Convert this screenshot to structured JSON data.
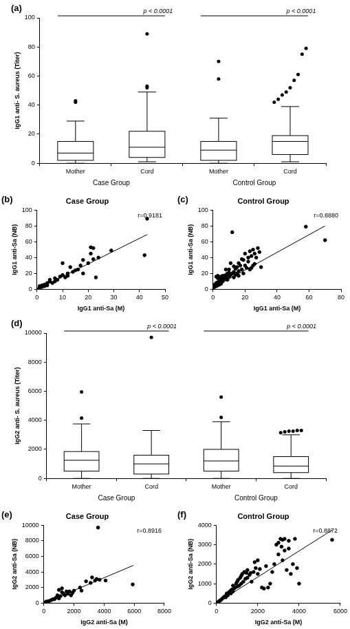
{
  "chart_data": [
    {
      "type": "box",
      "label": "(a)",
      "y_label": "IgG1 anti- S. aureus (Titer)",
      "categories": [
        "Mother",
        "Cord",
        "Mother",
        "Cord"
      ],
      "groups": [
        {
          "name": "Case Group",
          "annotation": "p < 0.0001"
        },
        {
          "name": "Control Group",
          "annotation": "p < 0.0001"
        }
      ],
      "boxes": [
        {
          "min": 0,
          "q1": 2,
          "median": 7,
          "q3": 15,
          "max": 29,
          "outliers": [
            42,
            43
          ]
        },
        {
          "min": 1,
          "q1": 4,
          "median": 11,
          "q3": 22,
          "max": 49,
          "outliers": [
            52,
            53,
            89
          ]
        },
        {
          "min": 0,
          "q1": 2,
          "median": 9,
          "q3": 15,
          "max": 31,
          "outliers": [
            58,
            70
          ]
        },
        {
          "min": 1,
          "q1": 6,
          "median": 15,
          "q3": 19,
          "max": 39,
          "outliers": [
            42,
            44,
            47,
            49,
            52,
            57,
            61,
            75,
            79
          ]
        }
      ],
      "color": "#000000",
      "ylim": [
        0,
        100
      ],
      "yticks": [
        0,
        20,
        40,
        60,
        80,
        100
      ],
      "grid": false
    },
    {
      "type": "scatter",
      "label": "(b)",
      "title": "Case Group",
      "x_label": "IgG1 anti-Sa (M)",
      "y_label": "IgG1 anti-Sa (NB)",
      "x": [
        0,
        1,
        1,
        2,
        2,
        3,
        3,
        4,
        4,
        5,
        5,
        6,
        7,
        7,
        8,
        9,
        10,
        10,
        11,
        12,
        12,
        13,
        14,
        15,
        16,
        17,
        18,
        18,
        20,
        21,
        21,
        22,
        22,
        23,
        24,
        29,
        42,
        43
      ],
      "y": [
        0,
        2,
        4,
        3,
        5,
        4,
        6,
        5,
        8,
        10,
        12,
        8,
        10,
        14,
        12,
        16,
        18,
        33,
        15,
        17,
        20,
        28,
        22,
        24,
        25,
        30,
        20,
        37,
        33,
        45,
        53,
        38,
        52,
        15,
        40,
        49,
        43,
        89
      ],
      "fit": {
        "x": [
          0,
          43
        ],
        "y": [
          0,
          69
        ]
      },
      "annotation": "r=0.9181",
      "color": "#000000",
      "marker": "circle",
      "xlim": [
        0,
        50
      ],
      "xticks": [
        0,
        10,
        20,
        30,
        40,
        50
      ],
      "ylim": [
        0,
        100
      ],
      "yticks": [
        0,
        20,
        40,
        60,
        80,
        100
      ],
      "grid": false
    },
    {
      "type": "scatter",
      "label": "(c)",
      "title": "Control Group",
      "x_label": "IgG1 anti-Sa (M)",
      "y_label": "IgG1 anti-Sa (NB)",
      "x": [
        0,
        0,
        1,
        1,
        1,
        2,
        2,
        2,
        3,
        3,
        3,
        4,
        4,
        4,
        5,
        5,
        5,
        6,
        6,
        7,
        7,
        8,
        8,
        9,
        9,
        10,
        10,
        11,
        11,
        12,
        12,
        13,
        13,
        14,
        14,
        15,
        15,
        16,
        16,
        17,
        18,
        18,
        19,
        20,
        20,
        21,
        22,
        22,
        23,
        23,
        24,
        25,
        25,
        26,
        27,
        28,
        30,
        58,
        70,
        2,
        3,
        6,
        8,
        10,
        13,
        16,
        19,
        24,
        26,
        29
      ],
      "y": [
        0,
        2,
        3,
        5,
        6,
        4,
        7,
        8,
        5,
        9,
        14,
        6,
        10,
        15,
        7,
        12,
        16,
        10,
        15,
        13,
        17,
        15,
        18,
        12,
        20,
        16,
        21,
        18,
        33,
        20,
        72,
        15,
        22,
        18,
        26,
        20,
        28,
        17,
        23,
        30,
        25,
        38,
        20,
        30,
        45,
        27,
        35,
        40,
        25,
        48,
        42,
        30,
        50,
        45,
        40,
        52,
        28,
        79,
        62,
        16,
        17,
        17,
        25,
        25,
        29,
        33,
        37,
        27,
        32,
        47
      ],
      "fit": {
        "x": [
          0,
          70
        ],
        "y": [
          2,
          80
        ]
      },
      "annotation": "r=0.8880",
      "color": "#000000",
      "marker": "circle",
      "xlim": [
        0,
        80
      ],
      "xticks": [
        0,
        20,
        40,
        60,
        80
      ],
      "ylim": [
        0,
        100
      ],
      "yticks": [
        0,
        20,
        40,
        60,
        80,
        100
      ],
      "grid": false
    },
    {
      "type": "box",
      "label": "(d)",
      "y_label": "IgG2 anti- S. aureus (Titer)",
      "categories": [
        "Mother",
        "Cord",
        "Mother",
        "Cord"
      ],
      "groups": [
        {
          "name": "Case Group",
          "annotation": "p < 0.0001"
        },
        {
          "name": "Control Group",
          "annotation": "p < 0.0001"
        }
      ],
      "boxes": [
        {
          "min": 0,
          "q1": 500,
          "median": 1250,
          "q3": 1850,
          "max": 3750,
          "outliers": [
            4150,
            5950
          ]
        },
        {
          "min": 0,
          "q1": 300,
          "median": 1000,
          "q3": 1600,
          "max": 3300,
          "outliers": [
            9700
          ]
        },
        {
          "min": 0,
          "q1": 500,
          "median": 1200,
          "q3": 2000,
          "max": 3900,
          "outliers": [
            4200,
            5600
          ]
        },
        {
          "min": 0,
          "q1": 400,
          "median": 850,
          "q3": 1500,
          "max": 3000,
          "outliers": [
            3150,
            3200,
            3250,
            3250,
            3300,
            3300
          ]
        }
      ],
      "color": "#000000",
      "ylim": [
        0,
        10000
      ],
      "yticks": [
        0,
        2000,
        4000,
        6000,
        8000,
        10000
      ],
      "grid": false
    },
    {
      "type": "scatter",
      "label": "(e)",
      "title": "Case Group",
      "x_label": "IgG2 anti-Sa (M)",
      "y_label": "IgG2 anti-Sa (NB)",
      "x": [
        50,
        100,
        150,
        200,
        300,
        400,
        500,
        600,
        700,
        800,
        900,
        1000,
        1000,
        1100,
        1200,
        1200,
        1300,
        1400,
        1500,
        1600,
        1700,
        1800,
        1900,
        2000,
        2400,
        2500,
        2800,
        3100,
        3200,
        3400,
        3500,
        3600,
        3700,
        4100,
        5900
      ],
      "y": [
        50,
        100,
        200,
        100,
        250,
        300,
        400,
        500,
        500,
        700,
        1000,
        600,
        1700,
        900,
        1400,
        1900,
        1200,
        1000,
        1500,
        1200,
        1500,
        1000,
        1300,
        1600,
        2000,
        1600,
        2800,
        2600,
        3300,
        2900,
        3100,
        9700,
        3000,
        2900,
        2400
      ],
      "fit": {
        "x": [
          0,
          5950
        ],
        "y": [
          0,
          4850
        ]
      },
      "annotation": "r=0.8916",
      "color": "#000000",
      "marker": "circle",
      "xlim": [
        0,
        8000
      ],
      "xticks": [
        0,
        2000,
        4000,
        6000,
        8000
      ],
      "ylim": [
        0,
        10000
      ],
      "yticks": [
        0,
        2000,
        4000,
        6000,
        8000,
        10000
      ],
      "grid": false
    },
    {
      "type": "scatter",
      "label": "(f)",
      "title": "Control Group",
      "x_label": "IgG2 anti-Sa (M)",
      "y_label": "IgG2 anti-Sa (NB)",
      "x": [
        50,
        100,
        150,
        200,
        250,
        300,
        350,
        400,
        450,
        500,
        500,
        550,
        600,
        650,
        700,
        700,
        750,
        800,
        800,
        850,
        900,
        950,
        1000,
        1000,
        1050,
        1100,
        1150,
        1200,
        1200,
        1250,
        1300,
        1350,
        1400,
        1450,
        1500,
        1500,
        1600,
        1650,
        1700,
        1800,
        1850,
        1900,
        2000,
        2000,
        2100,
        2200,
        2300,
        2400,
        2500,
        2600,
        2700,
        2800,
        2900,
        3000,
        3000,
        3100,
        3150,
        3200,
        3300,
        3300,
        3400,
        3500,
        3500,
        3700,
        3800,
        3900,
        4000,
        5600,
        3200,
        3600
      ],
      "y": [
        30,
        80,
        120,
        150,
        200,
        250,
        300,
        350,
        300,
        450,
        500,
        400,
        550,
        600,
        500,
        650,
        700,
        600,
        900,
        750,
        800,
        1000,
        850,
        1100,
        1200,
        900,
        1300,
        1000,
        1400,
        1500,
        1100,
        1600,
        1250,
        1550,
        1300,
        1700,
        1450,
        1550,
        1100,
        1600,
        2100,
        1800,
        1500,
        2200,
        1750,
        800,
        750,
        1900,
        800,
        1000,
        1600,
        2000,
        3000,
        2500,
        3100,
        3300,
        2900,
        3250,
        3300,
        2700,
        1700,
        2800,
        3200,
        2000,
        3300,
        1800,
        1000,
        3250,
        2200,
        1500
      ],
      "fit": {
        "x": [
          0,
          5600
        ],
        "y": [
          0,
          3750
        ]
      },
      "annotation": "r=0.8872",
      "color": "#000000",
      "marker": "circle",
      "xlim": [
        0,
        6000
      ],
      "xticks": [
        0,
        2000,
        4000,
        6000
      ],
      "ylim": [
        0,
        4000
      ],
      "yticks": [
        0,
        1000,
        2000,
        3000,
        4000
      ],
      "grid": false
    }
  ]
}
